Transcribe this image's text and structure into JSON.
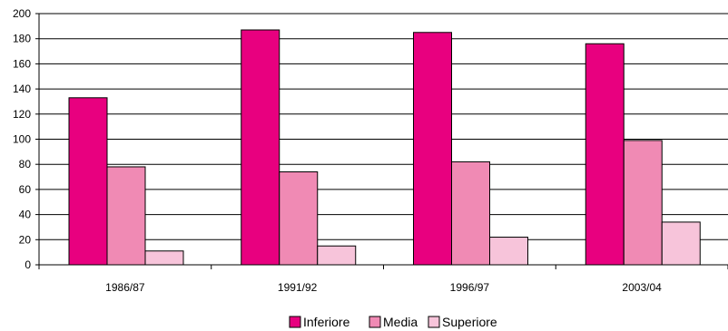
{
  "chart_data": {
    "type": "bar",
    "categories": [
      "1986/87",
      "1991/92",
      "1996/97",
      "2003/04"
    ],
    "series": [
      {
        "name": "Inferiore",
        "values": [
          133,
          187,
          185,
          176
        ],
        "color": "#e8007f"
      },
      {
        "name": "Media",
        "values": [
          78,
          74,
          82,
          99
        ],
        "color": "#f08ab4"
      },
      {
        "name": "Superiore",
        "values": [
          11,
          15,
          22,
          34
        ],
        "color": "#f7c4da"
      }
    ],
    "ylim": [
      0,
      200
    ],
    "yticks": [
      "0",
      "20",
      "40",
      "60",
      "80",
      "100",
      "120",
      "140",
      "160",
      "180",
      "200"
    ],
    "grid": true,
    "legend_position": "bottom"
  }
}
